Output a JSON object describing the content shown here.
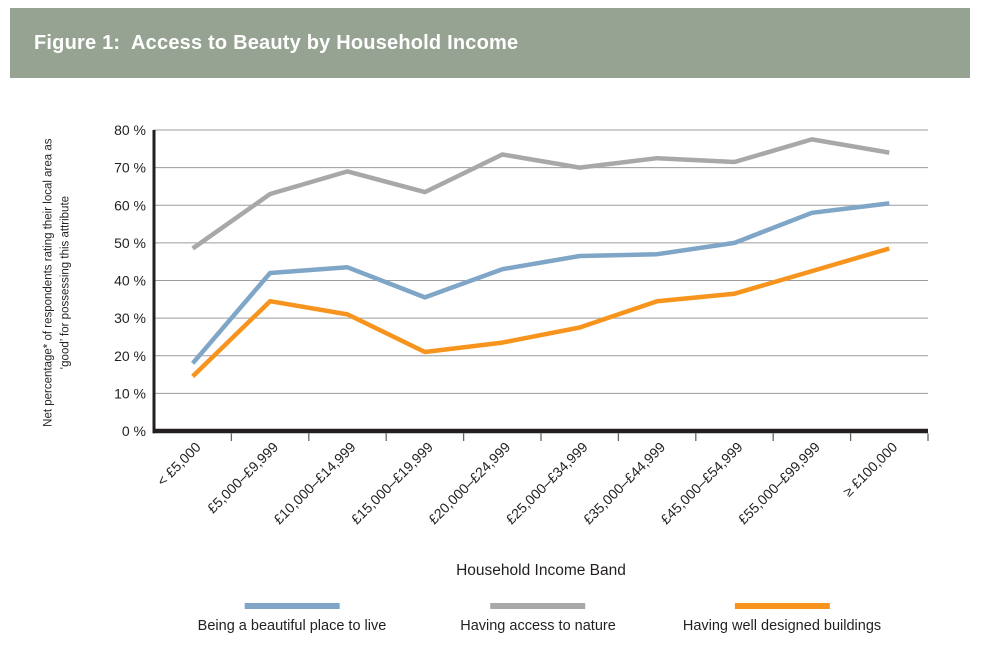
{
  "header": {
    "title": "Figure 1:  Access to Beauty by Household Income"
  },
  "chart_data": {
    "type": "line",
    "title": "Figure 1: Access to Beauty by Household Income",
    "xlabel": "Household Income Band",
    "ylabel": "Net percentage* of respondents rating their local area as ‘good’ for possessing this attribute",
    "ylim": [
      0,
      80
    ],
    "y_tick_step": 10,
    "y_tick_labels": [
      "0 %",
      "10 %",
      "20 %",
      "30 %",
      "40 %",
      "50 %",
      "60 %",
      "70 %",
      "80 %"
    ],
    "grid": true,
    "legend_position": "bottom",
    "categories": [
      "< £5,000",
      "£5,000–£9,999",
      "£10,000–£14,999",
      "£15,000–£19,999",
      "£20,000–£24,999",
      "£25,000–£34,999",
      "£35,000–£44,999",
      "£45,000–£54,999",
      "£55,000–£99,999",
      "≥ £100,000"
    ],
    "series": [
      {
        "name": "Being a beautiful place to live",
        "color": "#7FA6C6",
        "values": [
          18,
          42,
          43.5,
          35.5,
          43,
          46.5,
          47,
          50,
          58,
          60.5
        ]
      },
      {
        "name": "Having access to nature",
        "color": "#A8A8A8",
        "values": [
          48.5,
          63,
          69,
          63.5,
          73.5,
          70,
          72.5,
          71.5,
          77.5,
          74
        ]
      },
      {
        "name": "Having well designed buildings",
        "color": "#F7941E",
        "values": [
          14.5,
          34.5,
          31,
          21,
          23.5,
          27.5,
          34.5,
          36.5,
          42.5,
          48.5
        ]
      }
    ],
    "colors": {
      "header_bg": "#96A392",
      "axis": "#231F20",
      "gridline": "#9C9C9C"
    }
  }
}
